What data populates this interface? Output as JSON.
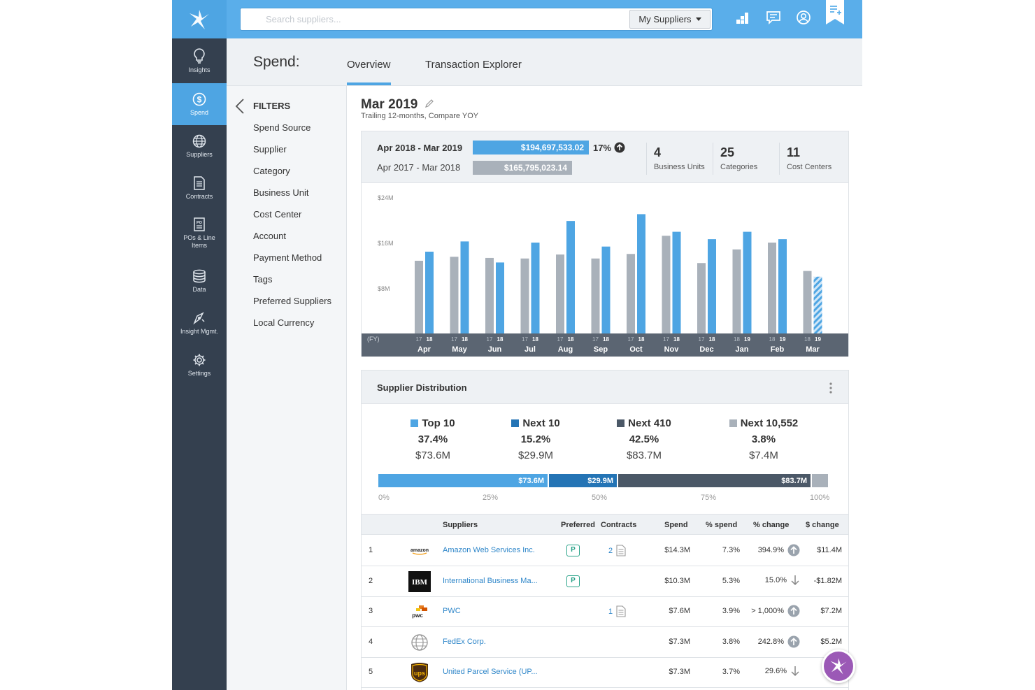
{
  "nav": {
    "items": [
      {
        "label": "Insights",
        "icon": "lightbulb-icon"
      },
      {
        "label": "Spend",
        "icon": "dollar-icon",
        "active": true
      },
      {
        "label": "Suppliers",
        "icon": "globe-icon"
      },
      {
        "label": "Contracts",
        "icon": "document-icon"
      },
      {
        "label": "POs & Line Items",
        "icon": "po-icon"
      },
      {
        "label": "Data",
        "icon": "database-icon"
      },
      {
        "label": "Insight Mgmt.",
        "icon": "insight-mgmt-icon"
      },
      {
        "label": "Settings",
        "icon": "gear-icon"
      }
    ]
  },
  "topbar": {
    "search_placeholder": "Search suppliers...",
    "scope_label": "My Suppliers"
  },
  "page": {
    "title": "Spend:",
    "tabs": [
      "Overview",
      "Transaction Explorer"
    ]
  },
  "filters": {
    "title": "FILTERS",
    "items": [
      "Spend Source",
      "Supplier",
      "Category",
      "Business Unit",
      "Cost Center",
      "Account",
      "Payment Method",
      "Tags",
      "Preferred Suppliers",
      "Local Currency"
    ]
  },
  "period": {
    "title": "Mar 2019",
    "subtitle": "Trailing 12-months, Compare YOY"
  },
  "summary": {
    "current_label": "Apr 2018 - Mar 2019",
    "current_value": "$194,697,533.02",
    "prior_label": "Apr 2017 - Mar 2018",
    "prior_value": "$165,795,023.14",
    "change": "17%",
    "stats": [
      {
        "num": "4",
        "label": "Business Units"
      },
      {
        "num": "25",
        "label": "Categories"
      },
      {
        "num": "11",
        "label": "Cost Centers"
      }
    ]
  },
  "chart_data": {
    "type": "bar",
    "yticks": [
      "$24M",
      "$16M",
      "$8M"
    ],
    "ytick_values": [
      24,
      16,
      8
    ],
    "ylim": [
      0,
      24
    ],
    "axis_prefix": "(FY)",
    "categories": [
      "Apr",
      "May",
      "Jun",
      "Jul",
      "Aug",
      "Sep",
      "Oct",
      "Nov",
      "Dec",
      "Jan",
      "Feb",
      "Mar"
    ],
    "year_labels": [
      [
        "17",
        "18"
      ],
      [
        "17",
        "18"
      ],
      [
        "17",
        "18"
      ],
      [
        "17",
        "18"
      ],
      [
        "17",
        "18"
      ],
      [
        "17",
        "18"
      ],
      [
        "17",
        "18"
      ],
      [
        "17",
        "18"
      ],
      [
        "17",
        "18"
      ],
      [
        "18",
        "19"
      ],
      [
        "18",
        "19"
      ],
      [
        "18",
        "19"
      ]
    ],
    "series": [
      {
        "values": [
          12.8,
          13.5,
          13.3,
          13.2,
          13.9,
          13.2,
          14.0,
          17.2,
          12.4,
          14.8,
          16.0,
          11.0
        ],
        "color": "#a9b1ba"
      },
      {
        "values": [
          14.4,
          16.2,
          12.5,
          16.0,
          19.8,
          15.3,
          21.0,
          17.9,
          16.6,
          17.9,
          16.6,
          10.0
        ],
        "color": "#4ea5e3",
        "last_partial": true
      }
    ],
    "colors": {
      "prior": "#a9b1ba",
      "current": "#4ea5e3",
      "axis_band": "#5b6572"
    }
  },
  "distribution": {
    "title": "Supplier Distribution",
    "tiers": [
      {
        "name": "Top 10",
        "pct": "37.4%",
        "amount": "$73.6M",
        "color": "#4ea5e3"
      },
      {
        "name": "Next 10",
        "pct": "15.2%",
        "amount": "$29.9M",
        "color": "#2474b5"
      },
      {
        "name": "Next 410",
        "pct": "42.5%",
        "amount": "$83.7M",
        "color": "#4b5867"
      },
      {
        "name": "Next 10,552",
        "pct": "3.8%",
        "amount": "$7.4M",
        "color": "#a9b1ba"
      }
    ],
    "bar": [
      {
        "label": "$73.6M",
        "fraction": 0.374
      },
      {
        "label": "$29.9M",
        "fraction": 0.152
      },
      {
        "label": "$83.7M",
        "fraction": 0.425
      },
      {
        "label": "",
        "fraction": 0.038
      }
    ],
    "axis": [
      "0%",
      "25%",
      "50%",
      "75%",
      "100%"
    ]
  },
  "table": {
    "headers": [
      "Suppliers",
      "Preferred",
      "Contracts",
      "Spend",
      "% spend",
      "% change",
      "$ change"
    ],
    "rows": [
      {
        "rank": "1",
        "logo": "amazon",
        "name": "Amazon Web Services Inc.",
        "preferred": "P",
        "contracts": "2",
        "spend": "$14.3M",
        "pct_spend": "7.3%",
        "pct_change": "394.9%",
        "direction": "up",
        "d_change": "$11.4M"
      },
      {
        "rank": "2",
        "logo": "IBM",
        "name": "International Business Ma...",
        "preferred": "P",
        "contracts": "",
        "spend": "$10.3M",
        "pct_spend": "5.3%",
        "pct_change": "15.0%",
        "direction": "down",
        "d_change": "-$1.82M"
      },
      {
        "rank": "3",
        "logo": "pwc",
        "name": "PWC",
        "preferred": "",
        "contracts": "1",
        "spend": "$7.6M",
        "pct_spend": "3.9%",
        "pct_change": "> 1,000%",
        "direction": "up",
        "d_change": "$7.2M"
      },
      {
        "rank": "4",
        "logo": "globe",
        "name": "FedEx Corp.",
        "preferred": "",
        "contracts": "",
        "spend": "$7.3M",
        "pct_spend": "3.8%",
        "pct_change": "242.8%",
        "direction": "up",
        "d_change": "$5.2M"
      },
      {
        "rank": "5",
        "logo": "ups",
        "name": "United Parcel Service (UP...",
        "preferred": "",
        "contracts": "",
        "spend": "$7.3M",
        "pct_spend": "3.7%",
        "pct_change": "29.6%",
        "direction": "down",
        "d_change": "-$3"
      }
    ]
  }
}
